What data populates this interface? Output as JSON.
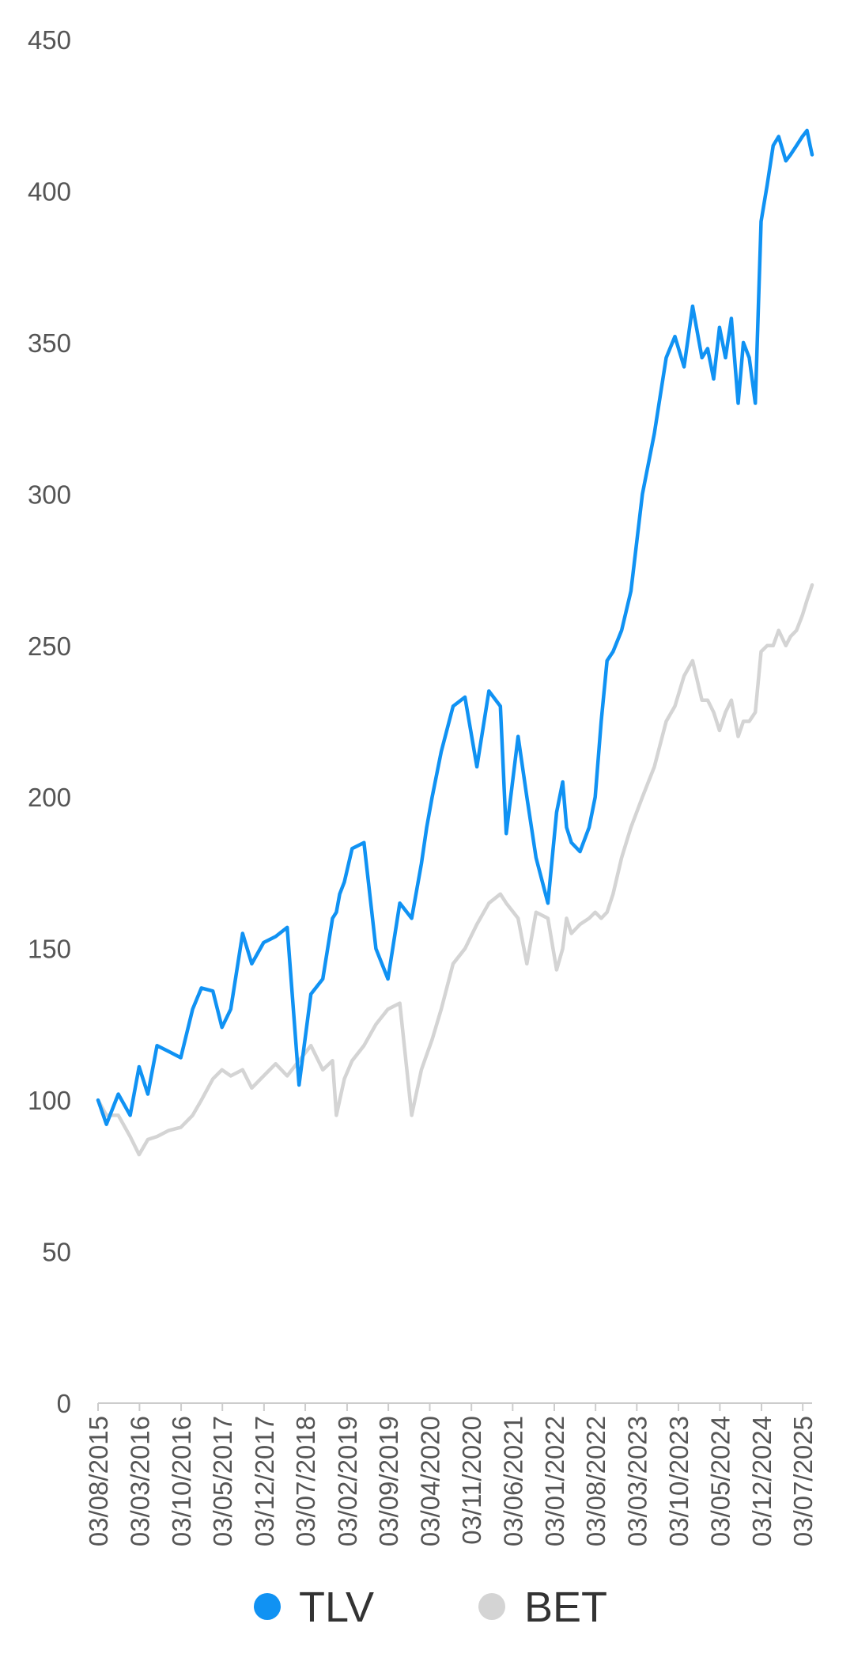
{
  "chart_data": {
    "type": "line",
    "title": "",
    "xlabel": "",
    "ylabel": "",
    "ylim": [
      0,
      450
    ],
    "y_ticks": [
      "0",
      "50",
      "100",
      "150",
      "200",
      "250",
      "300",
      "350",
      "400",
      "450"
    ],
    "x_range": [
      "2015-08-03",
      "2025-08-20"
    ],
    "x_tick_labels": [
      "03/08/2015",
      "03/03/2016",
      "03/10/2016",
      "03/05/2017",
      "03/12/2017",
      "03/07/2018",
      "03/02/2019",
      "03/09/2019",
      "03/04/2020",
      "03/11/2020",
      "03/06/2021",
      "03/01/2022",
      "03/08/2022",
      "03/03/2023",
      "03/10/2023",
      "03/05/2024",
      "03/12/2024",
      "03/07/2025"
    ],
    "legend_position": "bottom",
    "grid": false,
    "series": [
      {
        "name": "TLV",
        "color": "#1092f3",
        "x": [
          "2015-08-03",
          "2015-09-15",
          "2015-11-15",
          "2016-01-15",
          "2016-03-01",
          "2016-04-15",
          "2016-06-01",
          "2016-08-01",
          "2016-10-01",
          "2016-12-01",
          "2017-01-15",
          "2017-03-15",
          "2017-05-01",
          "2017-06-15",
          "2017-08-15",
          "2017-10-01",
          "2017-12-01",
          "2018-02-01",
          "2018-04-01",
          "2018-06-01",
          "2018-08-01",
          "2018-10-01",
          "2018-11-20",
          "2018-12-10",
          "2018-12-27",
          "2019-01-20",
          "2019-03-01",
          "2019-05-01",
          "2019-07-01",
          "2019-09-01",
          "2019-11-01",
          "2020-01-01",
          "2020-02-20",
          "2020-03-18",
          "2020-04-15",
          "2020-06-01",
          "2020-08-01",
          "2020-10-01",
          "2020-12-01",
          "2021-02-01",
          "2021-04-01",
          "2021-05-01",
          "2021-07-01",
          "2021-08-15",
          "2021-10-01",
          "2021-12-01",
          "2022-01-15",
          "2022-02-15",
          "2022-03-07",
          "2022-04-01",
          "2022-05-15",
          "2022-07-01",
          "2022-08-01",
          "2022-09-01",
          "2022-10-01",
          "2022-11-01",
          "2022-12-15",
          "2023-02-01",
          "2023-04-01",
          "2023-06-01",
          "2023-08-01",
          "2023-09-15",
          "2023-11-01",
          "2023-12-15",
          "2024-02-01",
          "2024-03-01",
          "2024-04-01",
          "2024-05-01",
          "2024-06-01",
          "2024-07-01",
          "2024-08-05",
          "2024-09-01",
          "2024-10-01",
          "2024-11-01",
          "2024-12-01",
          "2025-01-01",
          "2025-02-01",
          "2025-03-01",
          "2025-04-07",
          "2025-05-01",
          "2025-06-01",
          "2025-07-01",
          "2025-07-25",
          "2025-08-10",
          "2025-08-20"
        ],
        "values": [
          100,
          92,
          102,
          95,
          111,
          102,
          118,
          116,
          114,
          130,
          137,
          136,
          124,
          130,
          155,
          145,
          152,
          154,
          157,
          105,
          135,
          140,
          160,
          162,
          168,
          172,
          183,
          185,
          150,
          140,
          165,
          160,
          178,
          190,
          200,
          215,
          230,
          233,
          210,
          235,
          230,
          188,
          220,
          200,
          180,
          165,
          195,
          205,
          190,
          185,
          182,
          190,
          200,
          225,
          245,
          248,
          255,
          268,
          300,
          320,
          345,
          352,
          342,
          362,
          345,
          348,
          338,
          355,
          345,
          358,
          330,
          350,
          345,
          330,
          390,
          402,
          415,
          418,
          410,
          412,
          415,
          418,
          420,
          415,
          412
        ]
      },
      {
        "name": "BET",
        "color": "#d4d4d4",
        "x": [
          "2015-08-03",
          "2015-09-15",
          "2015-11-15",
          "2016-01-15",
          "2016-03-01",
          "2016-04-15",
          "2016-06-01",
          "2016-08-01",
          "2016-10-01",
          "2016-12-01",
          "2017-01-15",
          "2017-03-15",
          "2017-05-01",
          "2017-06-15",
          "2017-08-15",
          "2017-10-01",
          "2017-12-01",
          "2018-02-01",
          "2018-04-01",
          "2018-06-01",
          "2018-08-01",
          "2018-10-01",
          "2018-11-20",
          "2018-12-10",
          "2018-12-27",
          "2019-01-20",
          "2019-03-01",
          "2019-05-01",
          "2019-07-01",
          "2019-09-01",
          "2019-11-01",
          "2020-01-01",
          "2020-02-20",
          "2020-03-18",
          "2020-04-15",
          "2020-06-01",
          "2020-08-01",
          "2020-10-01",
          "2020-12-01",
          "2021-02-01",
          "2021-04-01",
          "2021-05-01",
          "2021-07-01",
          "2021-08-15",
          "2021-10-01",
          "2021-12-01",
          "2022-01-15",
          "2022-02-15",
          "2022-03-07",
          "2022-04-01",
          "2022-05-15",
          "2022-07-01",
          "2022-08-01",
          "2022-09-01",
          "2022-10-01",
          "2022-11-01",
          "2022-12-15",
          "2023-02-01",
          "2023-04-01",
          "2023-06-01",
          "2023-08-01",
          "2023-09-15",
          "2023-11-01",
          "2023-12-15",
          "2024-02-01",
          "2024-03-01",
          "2024-04-01",
          "2024-05-01",
          "2024-06-01",
          "2024-07-01",
          "2024-08-05",
          "2024-09-01",
          "2024-10-01",
          "2024-11-01",
          "2024-12-01",
          "2025-01-01",
          "2025-02-01",
          "2025-03-01",
          "2025-04-07",
          "2025-05-01",
          "2025-06-01",
          "2025-07-01",
          "2025-07-25",
          "2025-08-10",
          "2025-08-20"
        ],
        "values": [
          100,
          95,
          95,
          88,
          82,
          87,
          88,
          90,
          91,
          95,
          100,
          107,
          110,
          108,
          110,
          104,
          108,
          112,
          108,
          113,
          118,
          110,
          113,
          95,
          100,
          107,
          113,
          118,
          125,
          130,
          132,
          95,
          110,
          115,
          120,
          130,
          145,
          150,
          158,
          165,
          168,
          165,
          160,
          145,
          162,
          160,
          143,
          150,
          160,
          155,
          158,
          160,
          162,
          160,
          162,
          168,
          180,
          190,
          200,
          210,
          225,
          230,
          240,
          245,
          232,
          232,
          228,
          222,
          228,
          232,
          220,
          225,
          225,
          228,
          248,
          250,
          250,
          255,
          250,
          253,
          255,
          260,
          265,
          268,
          270
        ]
      }
    ]
  }
}
